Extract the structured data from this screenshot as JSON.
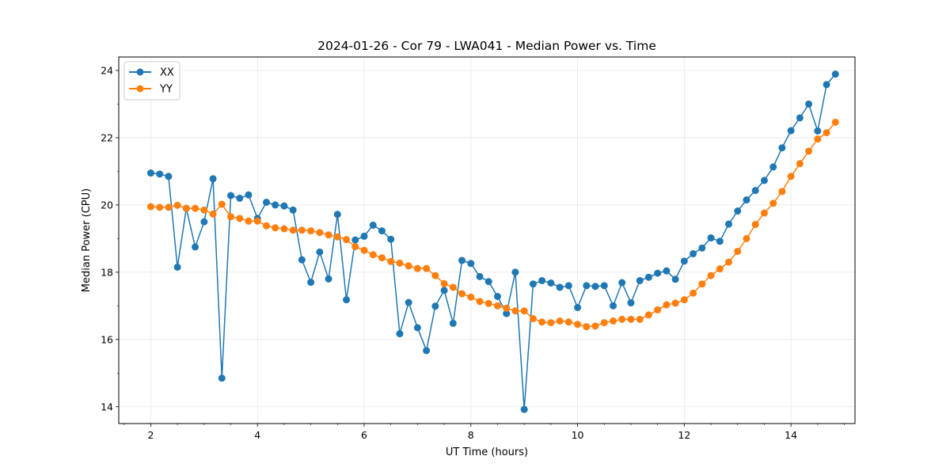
{
  "chart_data": {
    "type": "line",
    "title": "2024-01-26 - Cor 79 - LWA041 - Median Power vs. Time",
    "xlabel": "UT Time (hours)",
    "ylabel": "Median Power (CPU)",
    "xlim": [
      1.4,
      15.2
    ],
    "ylim": [
      13.5,
      24.4
    ],
    "xticks": [
      2,
      4,
      6,
      8,
      10,
      12,
      14
    ],
    "yticks": [
      14,
      16,
      18,
      20,
      22,
      24
    ],
    "grid": true,
    "legend_position": "top-left",
    "series": [
      {
        "name": "XX",
        "color": "#1f77b4",
        "x": [
          2.0,
          2.167,
          2.333,
          2.5,
          2.667,
          2.833,
          3.0,
          3.167,
          3.333,
          3.5,
          3.667,
          3.833,
          4.0,
          4.167,
          4.333,
          4.5,
          4.667,
          4.833,
          5.0,
          5.167,
          5.333,
          5.5,
          5.667,
          5.833,
          6.0,
          6.167,
          6.333,
          6.5,
          6.667,
          6.833,
          7.0,
          7.167,
          7.333,
          7.5,
          7.667,
          7.833,
          8.0,
          8.167,
          8.333,
          8.5,
          8.667,
          8.833,
          9.0,
          9.167,
          9.333,
          9.5,
          9.667,
          9.833,
          10.0,
          10.167,
          10.333,
          10.5,
          10.667,
          10.833,
          11.0,
          11.167,
          11.333,
          11.5,
          11.667,
          11.833,
          12.0,
          12.167,
          12.333,
          12.5,
          12.667,
          12.833,
          13.0,
          13.167,
          13.333,
          13.5,
          13.667,
          13.833,
          14.0,
          14.167,
          14.333,
          14.5,
          14.667,
          14.833
        ],
        "y": [
          20.95,
          20.92,
          20.85,
          18.15,
          19.9,
          18.75,
          19.5,
          20.78,
          14.85,
          20.28,
          20.2,
          20.3,
          19.6,
          20.08,
          20.0,
          19.97,
          19.85,
          18.37,
          17.7,
          18.6,
          17.8,
          19.72,
          17.18,
          18.96,
          19.07,
          19.4,
          19.23,
          18.98,
          16.17,
          17.1,
          16.35,
          15.67,
          16.99,
          17.46,
          16.48,
          18.35,
          18.26,
          17.87,
          17.72,
          17.28,
          16.77,
          18.0,
          13.92,
          17.65,
          17.75,
          17.68,
          17.55,
          17.6,
          16.95,
          17.6,
          17.58,
          17.6,
          17.0,
          17.69,
          17.09,
          17.75,
          17.85,
          17.97,
          18.04,
          17.79,
          18.33,
          18.55,
          18.72,
          19.02,
          18.92,
          19.43,
          19.82,
          20.15,
          20.43,
          20.73,
          21.13,
          21.7,
          22.21,
          22.59,
          23.0,
          22.2,
          23.58,
          23.89
        ]
      },
      {
        "name": "YY",
        "color": "#ff7f0e",
        "x": [
          2.0,
          2.167,
          2.333,
          2.5,
          2.667,
          2.833,
          3.0,
          3.167,
          3.333,
          3.5,
          3.667,
          3.833,
          4.0,
          4.167,
          4.333,
          4.5,
          4.667,
          4.833,
          5.0,
          5.167,
          5.333,
          5.5,
          5.667,
          5.833,
          6.0,
          6.167,
          6.333,
          6.5,
          6.667,
          6.833,
          7.0,
          7.167,
          7.333,
          7.5,
          7.667,
          7.833,
          8.0,
          8.167,
          8.333,
          8.5,
          8.667,
          8.833,
          9.0,
          9.167,
          9.333,
          9.5,
          9.667,
          9.833,
          10.0,
          10.167,
          10.333,
          10.5,
          10.667,
          10.833,
          11.0,
          11.167,
          11.333,
          11.5,
          11.667,
          11.833,
          12.0,
          12.167,
          12.333,
          12.5,
          12.667,
          12.833,
          13.0,
          13.167,
          13.333,
          13.5,
          13.667,
          13.833,
          14.0,
          14.167,
          14.333,
          14.5,
          14.667,
          14.833
        ],
        "y": [
          19.95,
          19.93,
          19.93,
          19.99,
          19.9,
          19.9,
          19.85,
          19.73,
          20.02,
          19.65,
          19.6,
          19.52,
          19.52,
          19.38,
          19.32,
          19.29,
          19.25,
          19.25,
          19.23,
          19.18,
          19.11,
          19.05,
          18.97,
          18.76,
          18.65,
          18.52,
          18.43,
          18.32,
          18.27,
          18.19,
          18.11,
          18.11,
          17.9,
          17.66,
          17.55,
          17.36,
          17.26,
          17.13,
          17.07,
          17.0,
          16.93,
          16.85,
          16.85,
          16.62,
          16.52,
          16.5,
          16.55,
          16.52,
          16.45,
          16.38,
          16.4,
          16.5,
          16.55,
          16.6,
          16.6,
          16.6,
          16.73,
          16.88,
          17.03,
          17.08,
          17.18,
          17.38,
          17.65,
          17.9,
          18.1,
          18.3,
          18.62,
          19.0,
          19.42,
          19.76,
          20.05,
          20.4,
          20.85,
          21.23,
          21.6,
          21.96,
          22.15,
          22.46
        ]
      }
    ]
  }
}
